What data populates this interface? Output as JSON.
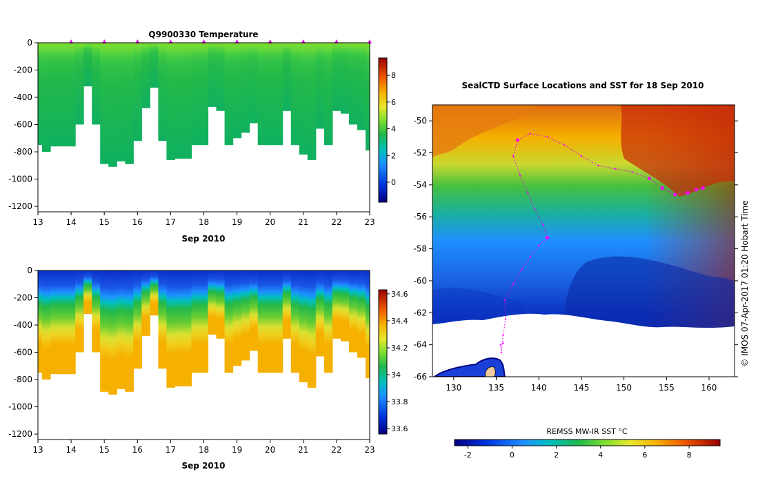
{
  "chart_data": [
    {
      "type": "heatmap",
      "title": "Q9900330  Temperature",
      "x_tick_labels": [
        "13",
        "14",
        "15",
        "16",
        "17",
        "18",
        "19",
        "20",
        "21",
        "22",
        "23"
      ],
      "xlim": [
        13,
        23
      ],
      "xlabel": "Sep 2010",
      "y_tick_labels": [
        "0",
        "-200",
        "-400",
        "-600",
        "-800",
        "-1000",
        "-1200"
      ],
      "ylim": [
        -1240,
        0
      ],
      "colorbar": {
        "ticks": [
          "0",
          "2",
          "4",
          "6",
          "8"
        ],
        "range": [
          -1.5,
          9.3
        ]
      },
      "profile_times": [
        13.0,
        13.25,
        13.5,
        13.75,
        14.0,
        14.25,
        14.5,
        14.75,
        15.0,
        15.25,
        15.5,
        15.75,
        16.0,
        16.25,
        16.5,
        16.75,
        17.0,
        17.25,
        17.5,
        17.75,
        18.0,
        18.25,
        18.5,
        18.75,
        19.0,
        19.25,
        19.5,
        19.75,
        20.0,
        20.25,
        20.5,
        20.75,
        21.0,
        21.25,
        21.5,
        21.75,
        22.0,
        22.25,
        22.5,
        22.75,
        23.0
      ],
      "profile_max_depth": [
        750,
        800,
        760,
        760,
        760,
        600,
        320,
        600,
        890,
        910,
        870,
        890,
        720,
        480,
        330,
        720,
        860,
        850,
        850,
        750,
        750,
        470,
        500,
        750,
        700,
        660,
        590,
        750,
        750,
        750,
        500,
        750,
        820,
        860,
        630,
        750,
        500,
        520,
        600,
        640,
        790
      ],
      "surface_markers": [
        14,
        15,
        16,
        17,
        18,
        19,
        20,
        21,
        22,
        23
      ]
    },
    {
      "type": "heatmap",
      "title": "",
      "x_tick_labels": [
        "13",
        "14",
        "15",
        "16",
        "17",
        "18",
        "19",
        "20",
        "21",
        "22",
        "23"
      ],
      "xlim": [
        13,
        23
      ],
      "xlabel": "Sep 2010",
      "y_tick_labels": [
        "0",
        "-200",
        "-400",
        "-600",
        "-800",
        "-1000",
        "-1200"
      ],
      "ylim": [
        -1240,
        0
      ],
      "colorbar": {
        "ticks": [
          "33.6",
          "33.8",
          "34",
          "34.2",
          "34.4",
          "34.6"
        ],
        "range": [
          33.56,
          34.63
        ]
      }
    },
    {
      "type": "heatmap",
      "title": "SealCTD Surface Locations and SST for 18 Sep 2010",
      "x_tick_labels": [
        "130",
        "135",
        "140",
        "145",
        "150",
        "155",
        "160"
      ],
      "xlim": [
        127.5,
        163
      ],
      "y_tick_labels": [
        "-50",
        "-52",
        "-54",
        "-56",
        "-58",
        "-60",
        "-62",
        "-64",
        "-66"
      ],
      "ylim": [
        -66,
        -49
      ],
      "colorbar": {
        "label": "REMSS MW-IR SST °C",
        "ticks": [
          "-2",
          "0",
          "2",
          "4",
          "6",
          "8"
        ],
        "range": [
          -2.6,
          9.4
        ]
      },
      "seal_track": [
        [
          135.8,
          -63.9
        ],
        [
          135.5,
          -64.0
        ],
        [
          135.6,
          -64.5
        ],
        [
          135.8,
          -63.4
        ],
        [
          136.1,
          -62.4
        ],
        [
          136.0,
          -61.2
        ],
        [
          137.0,
          -60.2
        ],
        [
          138.0,
          -59.3
        ],
        [
          139.0,
          -58.5
        ],
        [
          140.0,
          -57.8
        ],
        [
          141.0,
          -57.3
        ],
        [
          140.5,
          -56.5
        ],
        [
          139.5,
          -55.5
        ],
        [
          138.7,
          -54.5
        ],
        [
          137.8,
          -53.4
        ],
        [
          137.0,
          -52.2
        ],
        [
          137.5,
          -51.2
        ],
        [
          139.0,
          -50.8
        ],
        [
          141.0,
          -51.0
        ],
        [
          143.0,
          -51.5
        ],
        [
          145.0,
          -52.2
        ],
        [
          147.0,
          -52.8
        ],
        [
          149.0,
          -53.0
        ],
        [
          151.0,
          -53.2
        ],
        [
          153.0,
          -53.6
        ],
        [
          154.5,
          -54.2
        ],
        [
          156.0,
          -54.6
        ],
        [
          157.5,
          -54.5
        ],
        [
          158.5,
          -54.3
        ],
        [
          159.3,
          -54.2
        ]
      ],
      "sst_ticks_axis_note": ""
    }
  ],
  "credit": "©  IMOS 07-Apr-2017 01:20 Hobart Time"
}
